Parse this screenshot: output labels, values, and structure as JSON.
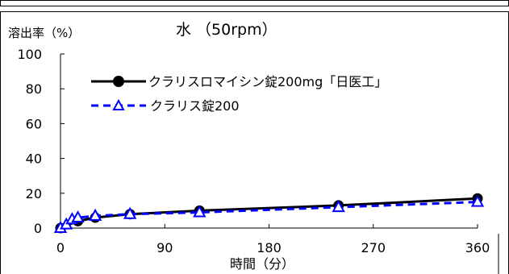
{
  "chart_data": {
    "type": "line",
    "title": "水 （50rpm）",
    "ylabel": "溶出率（%）",
    "xlabel": "時間（分）",
    "xlim": [
      0,
      360
    ],
    "ylim": [
      0,
      100
    ],
    "xticks": [
      0,
      90,
      180,
      270,
      360
    ],
    "yticks": [
      0,
      20,
      40,
      60,
      80,
      100
    ],
    "grid": false,
    "legend": "top-left",
    "series": [
      {
        "name": "クラリスロマイシン錠200mg「日医工」",
        "color": "#000000",
        "marker": "circle",
        "line": "solid",
        "x": [
          0,
          15,
          30,
          60,
          120,
          240,
          360
        ],
        "y": [
          0,
          4,
          6,
          8,
          10,
          13,
          17
        ]
      },
      {
        "name": "クラリス錠200",
        "color": "#0000ff",
        "marker": "triangle",
        "line": "dashed",
        "x": [
          0,
          5,
          10,
          15,
          30,
          60,
          120,
          240,
          360
        ],
        "y": [
          0,
          2,
          5,
          6,
          7,
          8,
          9,
          12,
          15
        ]
      }
    ]
  }
}
